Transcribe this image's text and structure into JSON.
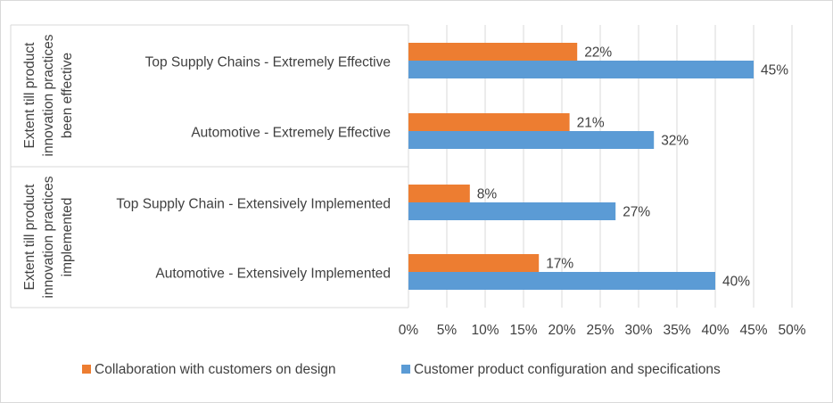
{
  "chart_data": {
    "type": "bar",
    "orientation": "horizontal",
    "groups": [
      {
        "label_lines": [
          "Extent till product",
          "innovation practices",
          "been effective"
        ],
        "categories": [
          "Top Supply Chains - Extremely Effective",
          "Automotive - Extremely Effective"
        ]
      },
      {
        "label_lines": [
          "Extent till product",
          "innovation practices",
          "implemented"
        ],
        "categories": [
          "Top Supply Chain - Extensively Implemented",
          "Automotive - Extensively Implemented"
        ]
      }
    ],
    "categories": [
      "Top Supply Chains - Extremely Effective",
      "Automotive - Extremely Effective",
      "Top Supply Chain - Extensively Implemented",
      "Automotive - Extensively Implemented"
    ],
    "series": [
      {
        "name": "Collaboration with customers on design",
        "color": "#ED7D31",
        "values": [
          22,
          21,
          8,
          17
        ],
        "labels": [
          "22%",
          "21%",
          "8%",
          "17%"
        ]
      },
      {
        "name": "Customer product configuration and specifications",
        "color": "#5B9BD5",
        "values": [
          45,
          32,
          27,
          40
        ],
        "labels": [
          "45%",
          "32%",
          "27%",
          "40%"
        ]
      }
    ],
    "xlim": [
      0,
      50
    ],
    "xticks": [
      0,
      5,
      10,
      15,
      20,
      25,
      30,
      35,
      40,
      45,
      50
    ],
    "xtick_labels": [
      "0%",
      "5%",
      "10%",
      "15%",
      "20%",
      "25%",
      "30%",
      "35%",
      "40%",
      "45%",
      "50%"
    ],
    "grid": "vertical",
    "legend": "bottom"
  }
}
